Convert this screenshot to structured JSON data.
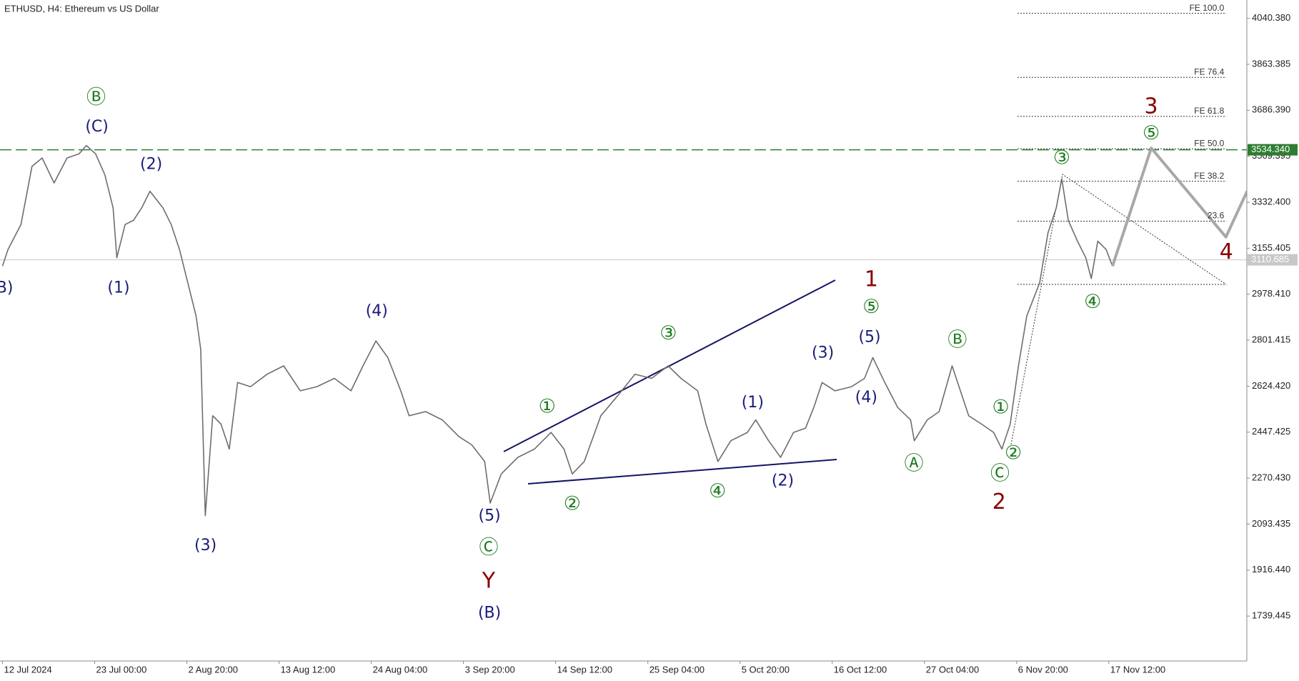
{
  "chart_data": {
    "type": "line",
    "title": "ETHUSD, H4:  Ethereum vs US Dollar",
    "xlim": [
      -0.027,
      13.497
    ],
    "ylim": [
      1566.6,
      4110.8
    ],
    "xticks": [
      {
        "value": 0,
        "label": "12 Jul 2024"
      },
      {
        "value": 1,
        "label": "23 Jul 00:00"
      },
      {
        "value": 2,
        "label": "2 Aug 20:00"
      },
      {
        "value": 3,
        "label": "13 Aug 12:00"
      },
      {
        "value": 4,
        "label": "24 Aug 04:00"
      },
      {
        "value": 5,
        "label": "3 Sep 20:00"
      },
      {
        "value": 6,
        "label": "14 Sep 12:00"
      },
      {
        "value": 7,
        "label": "25 Sep 04:00"
      },
      {
        "value": 8,
        "label": "5 Oct 20:00"
      },
      {
        "value": 9,
        "label": "16 Oct 12:00"
      },
      {
        "value": 10,
        "label": "27 Oct 04:00"
      },
      {
        "value": 11,
        "label": "6 Nov 20:00"
      },
      {
        "value": 12,
        "label": "17 Nov 12:00"
      }
    ],
    "yticks": [
      {
        "value": 4040.38,
        "label": "4040.380"
      },
      {
        "value": 3863.385,
        "label": "3863.385"
      },
      {
        "value": 3686.39,
        "label": "3686.390"
      },
      {
        "value": 3509.395,
        "label": "3509.395"
      },
      {
        "value": 3332.4,
        "label": "3332.400"
      },
      {
        "value": 3155.405,
        "label": "3155.405"
      },
      {
        "value": 2978.41,
        "label": "2978.410"
      },
      {
        "value": 2801.415,
        "label": "2801.415"
      },
      {
        "value": 2624.42,
        "label": "2624.420"
      },
      {
        "value": 2447.425,
        "label": "2447.425"
      },
      {
        "value": 2270.43,
        "label": "2270.430"
      },
      {
        "value": 2093.435,
        "label": "2093.435"
      },
      {
        "value": 1916.44,
        "label": "1916.440"
      },
      {
        "value": 1739.445,
        "label": "1739.445"
      }
    ],
    "series": [
      {
        "name": "ETHUSD",
        "color": "#6e6e6e",
        "x": [
          0,
          0.06,
          0.2,
          0.32,
          0.43,
          0.56,
          0.7,
          0.83,
          0.91,
          1.01,
          1.11,
          1.2,
          1.24,
          1.33,
          1.42,
          1.51,
          1.6,
          1.74,
          1.83,
          1.92,
          2.01,
          2.1,
          2.15,
          2.2,
          2.28,
          2.37,
          2.46,
          2.55,
          2.69,
          2.87,
          3.05,
          3.23,
          3.41,
          3.6,
          3.78,
          3.91,
          4.05,
          4.18,
          4.32,
          4.41,
          4.59,
          4.77,
          4.95,
          5.09,
          5.23,
          5.29,
          5.41,
          5.59,
          5.77,
          5.95,
          6.09,
          6.18,
          6.31,
          6.49,
          6.68,
          6.86,
          7.04,
          7.22,
          7.36,
          7.54,
          7.63,
          7.76,
          7.9,
          8.08,
          8.17,
          8.31,
          8.44,
          8.58,
          8.71,
          8.8,
          8.89,
          9.03,
          9.21,
          9.35,
          9.44,
          9.57,
          9.71,
          9.85,
          9.89,
          10.03,
          10.16,
          10.3,
          10.39,
          10.48,
          10.62,
          10.75,
          10.84,
          10.93,
          11.02,
          11.11,
          11.25,
          11.34,
          11.43,
          11.49,
          11.56,
          11.66,
          11.75,
          11.81,
          11.88,
          11.97,
          12.04
        ],
        "values": [
          3086.6,
          3150.6,
          3246.6,
          3470.7,
          3502.7,
          3406.7,
          3502.7,
          3518.7,
          3550.7,
          3518.7,
          3438.7,
          3310.6,
          3118.6,
          3246.6,
          3262.6,
          3310.6,
          3374.7,
          3310.6,
          3246.6,
          3150.6,
          3022.6,
          2894.5,
          2766.5,
          2126.0,
          2510.5,
          2478.5,
          2382.4,
          2638.5,
          2622.5,
          2670.5,
          2702.5,
          2606.5,
          2622.5,
          2654.5,
          2606.5,
          2702.5,
          2798.5,
          2734.5,
          2606.5,
          2510.5,
          2526.5,
          2494.5,
          2430.5,
          2398.5,
          2334.4,
          2174.4,
          2286.4,
          2350.4,
          2382.4,
          2446.5,
          2382.4,
          2286.4,
          2334.4,
          2510.5,
          2590.5,
          2670.5,
          2654.5,
          2702.5,
          2654.5,
          2606.5,
          2478.5,
          2334.4,
          2414.4,
          2446.5,
          2494.5,
          2414.4,
          2350.4,
          2446.5,
          2462.5,
          2542.5,
          2638.5,
          2606.5,
          2622.5,
          2654.5,
          2734.5,
          2638.5,
          2542.5,
          2494.5,
          2414.4,
          2494.5,
          2526.5,
          2702.5,
          2606.5,
          2510.5,
          2478.5,
          2446.5,
          2382.4,
          2478.5,
          2702.5,
          2894.5,
          3022.6,
          3214.6,
          3310.6,
          3422.7,
          3262.6,
          3182.6,
          3118.6,
          3038.6,
          3182.6,
          3150.6,
          3086.6
        ]
      }
    ],
    "forecast": {
      "color": "#a8a8a8",
      "x": [
        12.04,
        12.46,
        13.27,
        13.5
      ],
      "values": [
        3086.6,
        3541.0,
        3198.6,
        3374.7
      ]
    },
    "fib_levels": [
      {
        "value": 4059.6,
        "label": "FE 100.0"
      },
      {
        "value": 3813.1,
        "label": "FE 76.4"
      },
      {
        "value": 3662.7,
        "label": "FE 61.8"
      },
      {
        "value": 3537.9,
        "label": "FE 50.0"
      },
      {
        "value": 3413.1,
        "label": "FE 38.2"
      },
      {
        "value": 3259.4,
        "label": "23.6"
      },
      {
        "value": 3016.2
      }
    ],
    "price_lines": [
      {
        "value": 3534.34,
        "label": "3534.340",
        "color": "#2e7d32",
        "dashed": true
      },
      {
        "value": 3110.685,
        "label": "3110.685",
        "color": "#c8c8c8",
        "dashed": false
      }
    ],
    "annotations": [
      {
        "text": "Ⓑ",
        "color": "#1e7b1e"
      },
      {
        "text": "(C)",
        "color": "#1a1a7a"
      },
      {
        "text": "(2)",
        "color": "#1a1a7a"
      },
      {
        "text": "(1)",
        "color": "#1a1a7a"
      },
      {
        "text": "(B)",
        "color": "#1a1a7a"
      },
      {
        "text": "(3)",
        "color": "#1a1a7a"
      },
      {
        "text": "(4)",
        "color": "#1a1a7a"
      },
      {
        "text": "(5)",
        "color": "#1a1a7a"
      },
      {
        "text": "Ⓒ",
        "color": "#1e7b1e"
      },
      {
        "text": "Y",
        "color": "#8b0000"
      },
      {
        "text": "(B)",
        "color": "#1a1a7a"
      },
      {
        "text": "①",
        "color": "#1e7b1e"
      },
      {
        "text": "②",
        "color": "#1e7b1e"
      },
      {
        "text": "③",
        "color": "#1e7b1e"
      },
      {
        "text": "④",
        "color": "#1e7b1e"
      },
      {
        "text": "(1)",
        "color": "#1a1a7a"
      },
      {
        "text": "(2)",
        "color": "#1a1a7a"
      },
      {
        "text": "(3)",
        "color": "#1a1a7a"
      },
      {
        "text": "1",
        "color": "#8b0000"
      },
      {
        "text": "⑤",
        "color": "#1e7b1e"
      },
      {
        "text": "(5)",
        "color": "#1a1a7a"
      },
      {
        "text": "(4)",
        "color": "#1a1a7a"
      },
      {
        "text": "Ⓑ",
        "color": "#1e7b1e"
      },
      {
        "text": "Ⓐ",
        "color": "#1e7b1e"
      },
      {
        "text": "①",
        "color": "#1e7b1e"
      },
      {
        "text": "②",
        "color": "#1e7b1e"
      },
      {
        "text": "Ⓒ",
        "color": "#1e7b1e"
      },
      {
        "text": "2",
        "color": "#8b0000"
      },
      {
        "text": "③",
        "color": "#1e7b1e"
      },
      {
        "text": "④",
        "color": "#1e7b1e"
      },
      {
        "text": "3",
        "color": "#8b0000"
      },
      {
        "text": "⑤",
        "color": "#1e7b1e"
      },
      {
        "text": "4",
        "color": "#8b0000"
      }
    ]
  }
}
